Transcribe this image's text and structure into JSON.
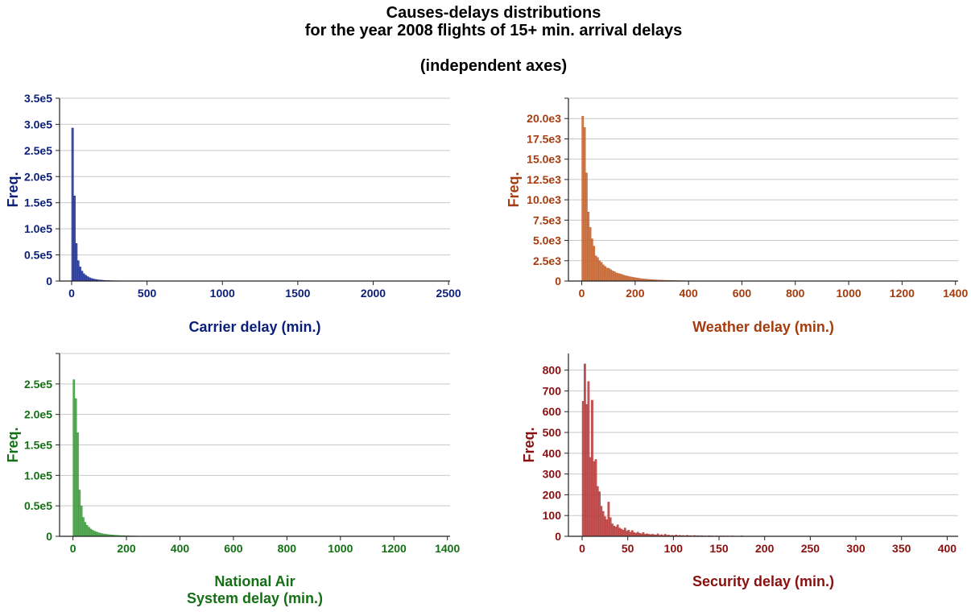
{
  "figure": {
    "title_line1": "Causes-delays distributions",
    "title_line2": "for the year 2008 flights of 15+ min. arrival delays",
    "title_line3": "(independent axes)"
  },
  "chart_data": [
    {
      "type": "bar",
      "subtype": "histogram",
      "xlabel": "Carrier delay (min.)",
      "ylabel": "Freq.",
      "color": "#1c2f99",
      "label_color": "#0b1f7a",
      "xlim": [
        -80,
        2510
      ],
      "ylim": [
        0,
        350000
      ],
      "xticks": [
        0,
        500,
        1000,
        1500,
        2000,
        2500
      ],
      "xtick_labels": [
        "0",
        "500",
        "1000",
        "1500",
        "2000",
        "2500"
      ],
      "yticks": [
        0,
        50000,
        100000,
        150000,
        200000,
        250000,
        300000,
        350000
      ],
      "ytick_labels": [
        "0",
        "0.5e5",
        "1.0e5",
        "1.5e5",
        "2.0e5",
        "2.5e5",
        "3.0e5",
        "3.5e5"
      ],
      "grid": "horizontal",
      "bin_start": 0,
      "bin_width": 12.5,
      "values": [
        293000,
        163000,
        72000,
        39000,
        27000,
        19000,
        14000,
        11000,
        8500,
        6500,
        5000,
        4000,
        3200,
        2600,
        2100,
        1800,
        1500,
        1250,
        1050,
        900,
        780,
        680,
        590,
        520,
        460,
        400,
        350,
        310,
        270,
        240,
        210,
        185,
        160,
        140,
        120
      ]
    },
    {
      "type": "bar",
      "subtype": "histogram",
      "xlabel": "Weather delay (min.)",
      "ylabel": "Freq.",
      "color": "#c4622c",
      "label_color": "#a63c0e",
      "xlim": [
        -50,
        1410
      ],
      "ylim": [
        0,
        22500
      ],
      "xticks": [
        0,
        200,
        400,
        600,
        800,
        1000,
        1200,
        1400
      ],
      "xtick_labels": [
        "0",
        "200",
        "400",
        "600",
        "800",
        "1000",
        "1200",
        "1400"
      ],
      "yticks": [
        0,
        2500,
        5000,
        7500,
        10000,
        12500,
        15000,
        17500,
        20000,
        22500
      ],
      "ytick_labels": [
        "0",
        "2.5e3",
        "5.0e3",
        "7.5e3",
        "10.0e3",
        "12.5e3",
        "15.0e3",
        "17.5e3",
        "20.0e3",
        ""
      ],
      "grid": "horizontal",
      "bin_start": 0,
      "bin_width": 7,
      "values": [
        20300,
        18900,
        13300,
        8500,
        6600,
        5200,
        4300,
        3100,
        2900,
        2500,
        2300,
        2000,
        1800,
        1600,
        1550,
        1400,
        1250,
        1150,
        1000,
        940,
        880,
        800,
        720,
        650,
        600,
        540,
        500,
        450,
        410,
        380,
        340,
        300,
        280,
        250,
        230,
        210,
        190,
        170,
        160,
        140,
        130,
        120,
        110,
        100,
        90,
        85,
        80,
        70,
        65,
        60,
        55,
        50,
        45,
        40,
        38,
        35,
        32,
        30,
        28,
        26,
        24,
        22,
        20,
        18,
        16,
        15,
        14,
        12
      ]
    },
    {
      "type": "bar",
      "subtype": "histogram",
      "xlabel": "National Air System delay (min.)",
      "xlabel_line1": "National Air",
      "xlabel_line2": "System delay (min.)",
      "ylabel": "Freq.",
      "color": "#3c9a3c",
      "label_color": "#147014",
      "xlim": [
        -50,
        1410
      ],
      "ylim": [
        0,
        300000
      ],
      "xticks": [
        0,
        200,
        400,
        600,
        800,
        1000,
        1200,
        1400
      ],
      "xtick_labels": [
        "0",
        "200",
        "400",
        "600",
        "800",
        "1000",
        "1200",
        "1400"
      ],
      "yticks": [
        0,
        50000,
        100000,
        150000,
        200000,
        250000,
        300000
      ],
      "ytick_labels": [
        "0",
        "0.5e5",
        "1.0e5",
        "1.5e5",
        "2.0e5",
        "2.5e5",
        ""
      ],
      "grid": "horizontal",
      "bin_start": 0,
      "bin_width": 7,
      "values": [
        257000,
        226000,
        170000,
        76000,
        50000,
        31000,
        23000,
        18000,
        15000,
        12000,
        10000,
        8500,
        7200,
        6000,
        5200,
        4500,
        3900,
        3400,
        3000,
        2600,
        2300,
        2000,
        1800,
        1600,
        1400,
        1200,
        1100,
        950,
        850,
        750,
        650,
        600,
        520,
        460,
        400,
        350,
        300,
        260,
        220,
        190
      ]
    },
    {
      "type": "bar",
      "subtype": "histogram",
      "xlabel": "Security delay (min.)",
      "ylabel": "Freq.",
      "color": "#b83a3a",
      "label_color": "#8a0f0f",
      "xlim": [
        -15,
        412
      ],
      "ylim": [
        0,
        880
      ],
      "xticks": [
        0,
        50,
        100,
        150,
        200,
        250,
        300,
        350,
        400
      ],
      "xtick_labels": [
        "0",
        "50",
        "100",
        "150",
        "200",
        "250",
        "300",
        "350",
        "400"
      ],
      "yticks": [
        0,
        100,
        200,
        300,
        400,
        500,
        600,
        700,
        800
      ],
      "ytick_labels": [
        "0",
        "100",
        "200",
        "300",
        "400",
        "500",
        "600",
        "700",
        "800"
      ],
      "grid": "horizontal",
      "bin_start": 0,
      "bin_width": 2,
      "values": [
        650,
        830,
        635,
        745,
        380,
        655,
        360,
        370,
        240,
        215,
        145,
        120,
        95,
        80,
        165,
        90,
        60,
        50,
        45,
        55,
        40,
        35,
        30,
        40,
        25,
        30,
        20,
        28,
        18,
        15,
        20,
        15,
        12,
        18,
        10,
        12,
        10,
        8,
        10,
        8,
        6,
        12,
        5,
        8,
        4,
        10,
        5,
        6,
        4,
        5,
        3,
        7,
        3,
        5,
        3,
        4,
        2,
        5,
        3,
        3,
        2,
        4,
        2,
        3,
        2,
        3,
        2,
        2,
        1,
        3,
        2,
        2,
        1,
        2,
        1,
        2,
        1,
        2,
        1,
        2,
        1,
        1,
        2,
        1,
        1,
        1,
        1,
        2,
        1,
        1,
        1,
        1,
        1,
        1,
        1,
        1,
        1,
        1,
        1,
        1,
        1,
        1,
        1,
        1,
        1,
        1,
        1,
        1,
        1,
        1,
        1,
        1,
        1,
        1,
        1,
        1,
        1,
        1,
        1,
        1,
        1,
        1,
        1,
        1,
        1,
        1,
        1,
        1,
        1,
        1,
        1,
        1,
        1,
        1,
        1,
        1,
        1,
        1,
        1,
        1,
        1,
        1,
        1,
        1,
        1,
        1,
        1,
        1,
        1,
        1,
        1,
        1,
        1,
        1,
        1,
        1,
        1,
        1,
        1,
        1,
        1,
        1,
        1,
        1,
        1,
        1,
        1,
        1,
        1,
        1,
        1,
        1,
        1,
        1,
        1,
        1,
        1,
        1,
        1,
        1,
        1,
        1,
        1,
        1,
        1,
        1,
        1,
        1,
        1,
        1,
        1,
        1,
        1,
        1,
        1,
        1,
        1,
        1,
        1,
        1
      ]
    }
  ]
}
